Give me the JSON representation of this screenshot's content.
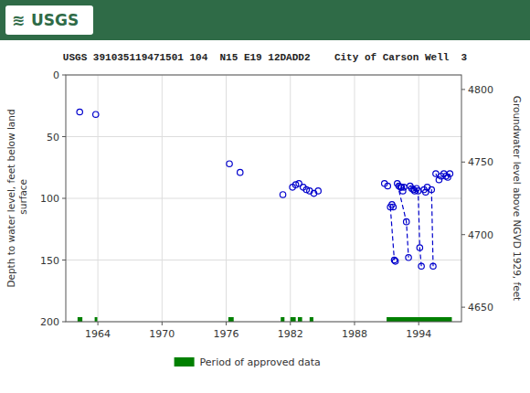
{
  "chart_data": {
    "type": "scatter",
    "title": "USGS 391035119471501 104  N15 E19 12DADD2    City of Carson Well  3",
    "annotations": [
      "≋",
      "USGS"
    ],
    "y_label": "Depth to water level, feet below land\n surface",
    "y2_label": "Groundwater level above NGVD 1929, feet",
    "xlim": [
      1961,
      1998
    ],
    "xticks": [
      1964,
      1970,
      1976,
      1982,
      1988,
      1994
    ],
    "ylim": [
      200,
      0
    ],
    "yticks": [
      0,
      50,
      100,
      150,
      200
    ],
    "y2lim": [
      4640,
      4810
    ],
    "y2ticks": [
      4650,
      4700,
      4750,
      4800
    ],
    "grid": true,
    "legend": "bottom",
    "series": [
      {
        "type": "scatter",
        "color": "#0000cc",
        "marker": "circle",
        "x": [
          1962.3,
          1963.8,
          1976.3,
          1977.3,
          1981.3,
          1982.2,
          1982.5,
          1982.8,
          1983.2,
          1983.5,
          1983.8,
          1984.2,
          1984.6,
          1990.8,
          1991.1,
          1991.35,
          1991.5,
          1991.62,
          1991.72,
          1991.82,
          1992.0,
          1992.15,
          1992.3,
          1992.4,
          1992.52,
          1992.62,
          1992.85,
          1993.05,
          1993.2,
          1993.35,
          1993.5,
          1993.62,
          1993.8,
          1993.95,
          1994.1,
          1994.25,
          1994.5,
          1994.65,
          1994.8,
          1995.2,
          1995.35,
          1995.6,
          1995.9,
          1996.1,
          1996.35,
          1996.55,
          1996.72,
          1996.92
        ],
        "values": [
          30,
          32,
          72,
          79,
          97,
          91,
          89,
          88,
          91,
          93,
          94,
          96,
          94,
          88,
          90,
          107,
          105,
          107,
          150,
          151,
          88,
          90,
          91,
          91,
          94,
          91,
          119,
          148,
          90,
          92,
          93,
          94,
          92,
          94,
          140,
          155,
          93,
          95,
          91,
          93,
          155,
          80,
          85,
          82,
          80,
          82,
          83,
          80
        ]
      },
      {
        "type": "line",
        "line_style": "dashed",
        "color": "#0000cc",
        "x": [
          1991.35,
          1991.72
        ],
        "values": [
          107,
          150
        ]
      },
      {
        "type": "line",
        "line_style": "dashed",
        "color": "#0000cc",
        "x": [
          1992.0,
          1992.85,
          1993.05
        ],
        "values": [
          88,
          119,
          148
        ]
      },
      {
        "type": "line",
        "line_style": "dashed",
        "color": "#0000cc",
        "x": [
          1993.2,
          1993.95,
          1994.1,
          1994.25
        ],
        "values": [
          90,
          94,
          140,
          155
        ]
      },
      {
        "type": "line",
        "line_style": "dashed",
        "color": "#0000cc",
        "x": [
          1994.5,
          1995.2,
          1995.35
        ],
        "values": [
          93,
          93,
          155
        ]
      },
      {
        "type": "line",
        "line_style": "dashed",
        "color": "#0000cc",
        "x": [
          1995.6,
          1995.9
        ],
        "values": [
          80,
          85
        ]
      },
      {
        "type": "line",
        "line_style": "dashed",
        "color": "#0000cc",
        "x": [
          1996.1,
          1996.72,
          1996.92
        ],
        "values": [
          82,
          83,
          80
        ]
      },
      {
        "type": "span",
        "name": "Period of approved data",
        "color": "#008000",
        "periods": [
          [
            1962.1,
            1962.55
          ],
          [
            1963.7,
            1963.95
          ],
          [
            1976.2,
            1976.7
          ],
          [
            1981.1,
            1981.45
          ],
          [
            1982.0,
            1982.5
          ],
          [
            1982.7,
            1983.1
          ],
          [
            1983.8,
            1984.15
          ],
          [
            1991.0,
            1997.1
          ]
        ]
      }
    ]
  }
}
